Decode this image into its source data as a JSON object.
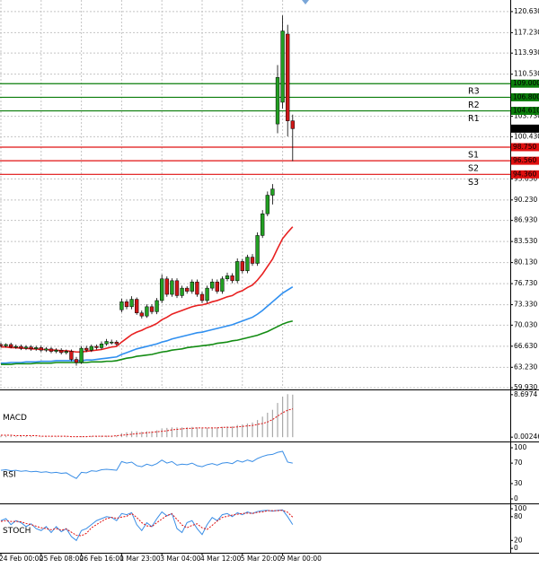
{
  "chart_data": [
    {
      "type": "candlestick",
      "categories": [
        "24 Feb 00:00",
        null,
        null,
        null,
        null,
        null,
        null,
        null,
        "25 Feb 08:00",
        null,
        null,
        null,
        null,
        null,
        null,
        null,
        "26 Feb 16:00",
        null,
        null,
        null,
        null,
        null,
        null,
        null,
        "1 Mar 23:00",
        null,
        null,
        null,
        null,
        null,
        null,
        null,
        "3 Mar 04:00",
        null,
        null,
        null,
        null,
        null,
        null,
        null,
        "4 Mar 12:00",
        null,
        null,
        null,
        null,
        null,
        null,
        null,
        "5 Mar 20:00",
        null,
        null,
        null,
        null,
        null,
        null,
        null,
        "9 Mar 00:00",
        null,
        null
      ],
      "open": [
        66.9,
        66.7,
        66.9,
        66.5,
        66.6,
        66.3,
        66.5,
        66.2,
        66.4,
        66.0,
        66.2,
        65.8,
        66.0,
        65.6,
        65.8,
        64.5,
        64.0,
        66.3,
        66.0,
        66.6,
        66.4,
        67.0,
        67.2,
        67.3,
        72.5,
        73.8,
        73.0,
        74.2,
        72.0,
        71.5,
        73.0,
        72.2,
        74.0,
        77.5,
        75.0,
        77.2,
        74.8,
        76.0,
        75.5,
        77.0,
        75.0,
        74.0,
        76.0,
        77.0,
        75.5,
        77.5,
        78.0,
        77.2,
        80.3,
        78.8,
        81.0,
        80.0,
        84.5,
        88.0,
        91.0,
        102.5,
        106.0,
        117.0,
        103.0
      ],
      "high": [
        67.2,
        67.1,
        67.2,
        66.9,
        66.9,
        66.8,
        66.8,
        66.7,
        66.7,
        66.5,
        66.5,
        66.3,
        66.3,
        66.1,
        66.1,
        64.9,
        66.6,
        66.7,
        66.9,
        66.9,
        67.4,
        67.8,
        67.7,
        67.6,
        74.3,
        74.2,
        74.7,
        74.5,
        72.4,
        73.4,
        73.4,
        74.4,
        78.2,
        77.9,
        77.6,
        77.6,
        76.4,
        76.3,
        77.4,
        77.4,
        75.4,
        76.4,
        77.5,
        77.4,
        77.9,
        78.5,
        78.4,
        80.8,
        80.7,
        81.4,
        81.5,
        85.0,
        88.6,
        91.6,
        92.8,
        112.0,
        120.0,
        118.5,
        104.0
      ],
      "low": [
        66.4,
        66.4,
        66.3,
        66.2,
        66.0,
        66.0,
        65.9,
        65.9,
        65.7,
        65.7,
        65.5,
        65.5,
        65.3,
        65.3,
        64.2,
        63.5,
        63.8,
        65.7,
        65.7,
        66.1,
        66.1,
        66.7,
        66.9,
        66.7,
        72.1,
        72.6,
        72.6,
        71.7,
        71.1,
        71.2,
        71.8,
        71.8,
        73.6,
        74.6,
        74.6,
        74.4,
        74.4,
        75.1,
        75.1,
        74.6,
        73.6,
        73.6,
        75.6,
        75.1,
        75.1,
        77.1,
        76.8,
        76.8,
        78.4,
        78.4,
        79.6,
        79.6,
        84.1,
        87.6,
        89.5,
        101.0,
        105.0,
        100.5,
        96.5
      ],
      "close": [
        66.7,
        66.9,
        66.5,
        66.6,
        66.3,
        66.5,
        66.2,
        66.4,
        66.0,
        66.2,
        65.8,
        66.0,
        65.6,
        65.8,
        64.5,
        64.0,
        66.3,
        66.0,
        66.6,
        66.4,
        67.0,
        67.4,
        67.3,
        67.0,
        73.8,
        73.0,
        74.2,
        72.0,
        71.5,
        73.0,
        72.2,
        74.0,
        77.5,
        75.0,
        77.2,
        74.8,
        76.0,
        75.5,
        77.0,
        75.0,
        74.0,
        76.0,
        77.0,
        75.5,
        77.5,
        78.0,
        77.2,
        80.3,
        78.8,
        81.0,
        80.0,
        84.5,
        88.0,
        91.0,
        92.0,
        110.0,
        117.5,
        103.0,
        101.74
      ],
      "up_color": "#22a022",
      "down_color": "#d01818",
      "overlays": [
        {
          "color": "#e82020",
          "values": [
            66.5,
            66.5,
            66.4,
            66.4,
            66.3,
            66.3,
            66.2,
            66.2,
            66.1,
            66.1,
            66.0,
            66.0,
            65.9,
            65.9,
            65.8,
            65.7,
            65.7,
            65.8,
            65.9,
            66.0,
            66.1,
            66.3,
            66.5,
            66.6,
            67.3,
            67.9,
            68.5,
            68.9,
            69.2,
            69.6,
            69.9,
            70.3,
            70.9,
            71.3,
            71.8,
            72.1,
            72.4,
            72.7,
            73.0,
            73.2,
            73.3,
            73.5,
            73.8,
            74.0,
            74.3,
            74.6,
            74.8,
            75.3,
            75.6,
            76.1,
            76.5,
            77.3,
            78.3,
            79.5,
            80.7,
            82.4,
            84.0,
            85.0,
            85.9
          ]
        },
        {
          "color": "#2f8ff0",
          "values": [
            63.9,
            63.9,
            64.0,
            64.0,
            64.0,
            64.1,
            64.1,
            64.1,
            64.2,
            64.2,
            64.2,
            64.3,
            64.3,
            64.3,
            64.3,
            64.3,
            64.3,
            64.4,
            64.4,
            64.5,
            64.6,
            64.7,
            64.8,
            64.9,
            65.3,
            65.6,
            65.9,
            66.2,
            66.4,
            66.6,
            66.8,
            67.0,
            67.3,
            67.5,
            67.8,
            68.0,
            68.2,
            68.4,
            68.6,
            68.8,
            68.9,
            69.1,
            69.3,
            69.5,
            69.7,
            69.9,
            70.1,
            70.4,
            70.7,
            71.0,
            71.3,
            71.8,
            72.4,
            73.1,
            73.8,
            74.5,
            75.2,
            75.7,
            76.2
          ]
        },
        {
          "color": "#138c13",
          "values": [
            63.7,
            63.7,
            63.7,
            63.8,
            63.8,
            63.8,
            63.8,
            63.9,
            63.9,
            63.9,
            63.9,
            64.0,
            64.0,
            64.0,
            64.0,
            64.0,
            64.0,
            64.0,
            64.1,
            64.1,
            64.1,
            64.2,
            64.2,
            64.3,
            64.5,
            64.7,
            64.8,
            65.0,
            65.1,
            65.2,
            65.3,
            65.5,
            65.7,
            65.8,
            66.0,
            66.1,
            66.2,
            66.4,
            66.5,
            66.6,
            66.7,
            66.8,
            66.9,
            67.1,
            67.2,
            67.3,
            67.5,
            67.6,
            67.8,
            68.0,
            68.2,
            68.4,
            68.7,
            69.0,
            69.4,
            69.8,
            70.2,
            70.5,
            70.7
          ]
        }
      ],
      "levels": [
        {
          "name": "R3",
          "value": 109.0,
          "label": "109.000",
          "color": "#0a7d0a"
        },
        {
          "name": "R2",
          "value": 106.8,
          "label": "106.800",
          "color": "#0a7d0a"
        },
        {
          "name": "R1",
          "value": 104.61,
          "label": "104.610",
          "color": "#0a7d0a"
        },
        {
          "name": "S1",
          "value": 98.75,
          "label": "98.750",
          "color": "#e01010"
        },
        {
          "name": "S2",
          "value": 96.56,
          "label": "96.560",
          "color": "#e01010"
        },
        {
          "name": "S3",
          "value": 94.36,
          "label": "94.360",
          "color": "#e01010"
        }
      ],
      "last_price": {
        "value": 101.74,
        "label": "101.740"
      },
      "ylim": [
        59.8,
        122.5
      ],
      "yticks": [
        {
          "value": 120.63,
          "label": "120.630"
        },
        {
          "value": 117.23,
          "label": "117.230"
        },
        {
          "value": 113.93,
          "label": "113.930"
        },
        {
          "value": 110.53,
          "label": "110.530"
        },
        {
          "value": 103.73,
          "label": "103.730"
        },
        {
          "value": 100.43,
          "label": "100.430"
        },
        {
          "value": 93.63,
          "label": "93.630"
        },
        {
          "value": 90.23,
          "label": "90.230"
        },
        {
          "value": 86.93,
          "label": "86.930"
        },
        {
          "value": 83.53,
          "label": "83.530"
        },
        {
          "value": 80.13,
          "label": "80.130"
        },
        {
          "value": 76.73,
          "label": "76.730"
        },
        {
          "value": 73.33,
          "label": "73.330"
        },
        {
          "value": 70.03,
          "label": "70.030"
        },
        {
          "value": 66.63,
          "label": "66.630"
        },
        {
          "value": 63.23,
          "label": "63.230"
        },
        {
          "value": 59.93,
          "label": "59.930"
        }
      ],
      "grid": true
    },
    {
      "type": "macd",
      "title": "MACD",
      "color": "#a8a8a8",
      "signal_color": "#e01010",
      "values": [
        0.3,
        0.3,
        0.3,
        0.2,
        0.2,
        0.2,
        0.2,
        0.1,
        0.1,
        0.1,
        0.1,
        0.1,
        0.1,
        0.1,
        0.1,
        0.1,
        0.2,
        0.2,
        0.2,
        0.2,
        0.3,
        0.3,
        0.3,
        0.3,
        0.8,
        1.0,
        1.2,
        1.2,
        1.1,
        1.2,
        1.2,
        1.4,
        1.8,
        1.9,
        2.0,
        2.0,
        2.0,
        2.0,
        2.1,
        2.0,
        1.9,
        1.9,
        2.0,
        2.0,
        2.1,
        2.2,
        2.2,
        2.5,
        2.6,
        2.8,
        3.0,
        3.5,
        4.2,
        5.0,
        5.6,
        7.0,
        8.3,
        8.8,
        8.7
      ],
      "signal": [
        0.4,
        0.4,
        0.4,
        0.3,
        0.3,
        0.3,
        0.3,
        0.3,
        0.2,
        0.2,
        0.2,
        0.2,
        0.2,
        0.2,
        0.1,
        0.1,
        0.1,
        0.1,
        0.2,
        0.2,
        0.2,
        0.2,
        0.2,
        0.3,
        0.4,
        0.5,
        0.6,
        0.7,
        0.8,
        0.9,
        1.0,
        1.1,
        1.2,
        1.3,
        1.5,
        1.6,
        1.7,
        1.8,
        1.8,
        1.9,
        1.9,
        1.9,
        1.9,
        1.9,
        2.0,
        2.0,
        2.0,
        2.1,
        2.2,
        2.3,
        2.4,
        2.6,
        2.8,
        3.1,
        3.6,
        4.3,
        5.0,
        5.5,
        5.8
      ],
      "ylim": [
        -0.7,
        9.4
      ],
      "yticks": [
        8.6974,
        0.00246
      ]
    },
    {
      "type": "line",
      "title": "RSI",
      "color": "#3a8ee6",
      "values": [
        56,
        57,
        55,
        56,
        54,
        55,
        53,
        54,
        52,
        53,
        51,
        52,
        50,
        51,
        45,
        40,
        52,
        51,
        55,
        54,
        57,
        58,
        57,
        56,
        73,
        70,
        72,
        65,
        63,
        68,
        65,
        69,
        76,
        70,
        73,
        66,
        68,
        67,
        70,
        65,
        63,
        67,
        69,
        66,
        70,
        71,
        69,
        75,
        72,
        76,
        73,
        79,
        83,
        86,
        87,
        91,
        93,
        72,
        70
      ],
      "ylim": [
        -7,
        108.8
      ],
      "yticks": [
        100,
        70,
        30,
        0
      ]
    },
    {
      "type": "line",
      "title": "STOCH",
      "series": [
        {
          "color": "#3a8ee6",
          "values": [
            70,
            75,
            60,
            70,
            65,
            55,
            62,
            50,
            45,
            55,
            40,
            55,
            42,
            50,
            30,
            20,
            45,
            50,
            60,
            70,
            75,
            80,
            78,
            70,
            88,
            85,
            90,
            60,
            45,
            65,
            55,
            75,
            92,
            82,
            88,
            50,
            40,
            65,
            70,
            50,
            35,
            60,
            78,
            70,
            85,
            88,
            80,
            90,
            85,
            92,
            88,
            93,
            95,
            96,
            94,
            96,
            97,
            80,
            60
          ]
        },
        {
          "color": "#e01010",
          "dashed": true,
          "values": [
            68,
            70,
            68,
            68,
            67,
            63,
            60,
            56,
            52,
            50,
            47,
            50,
            46,
            49,
            41,
            33,
            32,
            38,
            52,
            60,
            68,
            75,
            78,
            76,
            79,
            81,
            88,
            78,
            65,
            57,
            55,
            65,
            74,
            83,
            87,
            73,
            59,
            52,
            58,
            62,
            52,
            48,
            58,
            69,
            78,
            81,
            84,
            86,
            88,
            89,
            88,
            91,
            92,
            95,
            95,
            95,
            96,
            91,
            79
          ]
        }
      ],
      "ylim": [
        -11,
        109
      ],
      "yticks": [
        100,
        80,
        20,
        0
      ]
    }
  ]
}
